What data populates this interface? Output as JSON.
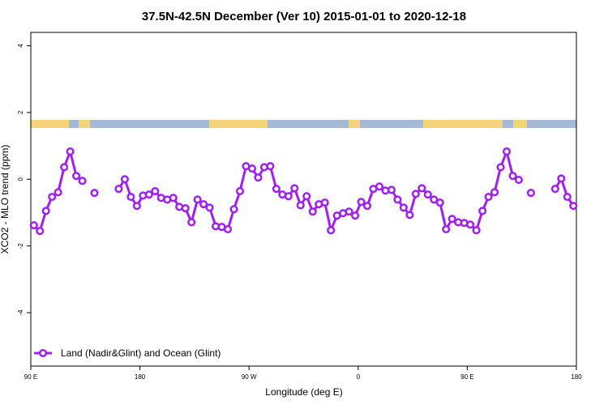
{
  "chart_data": {
    "type": "line",
    "title": "37.5N-42.5N December (Ver 10)   2015-01-01 to 2020-12-18",
    "x_label": "Longitude (deg E)",
    "y_label": "XCO2 - MLO trend (ppm)",
    "xlim": [
      90,
      540
    ],
    "ylim": [
      -5.6,
      4.4
    ],
    "xticks": [
      {
        "value": 90,
        "label": "90 E"
      },
      {
        "value": 180,
        "label": "180"
      },
      {
        "value": 270,
        "label": "90 W"
      },
      {
        "value": 360,
        "label": "0"
      },
      {
        "value": 450,
        "label": "90 E"
      },
      {
        "value": 540,
        "label": "180"
      }
    ],
    "yticks": [
      -4,
      -2,
      0,
      2,
      4
    ],
    "legend": "bottom-left",
    "x": [
      92.5,
      97.5,
      102.5,
      107.5,
      112.5,
      117.5,
      122.5,
      127.5,
      132.5,
      137.5,
      142.5,
      147.5,
      152.5,
      157.5,
      162.5,
      167.5,
      172.5,
      177.5,
      182.5,
      187.5,
      192.5,
      197.5,
      202.5,
      207.5,
      212.5,
      217.5,
      222.5,
      227.5,
      232.5,
      237.5,
      242.5,
      247.5,
      252.5,
      257.5,
      262.5,
      267.5,
      272.5,
      277.5,
      282.5,
      287.5,
      292.5,
      297.5,
      302.5,
      307.5,
      312.5,
      317.5,
      322.5,
      327.5,
      332.5,
      337.5,
      342.5,
      347.5,
      352.5,
      357.5,
      362.5,
      367.5,
      372.5,
      377.5,
      382.5,
      387.5,
      392.5,
      397.5,
      402.5,
      407.5,
      412.5,
      417.5,
      422.5,
      427.5,
      432.5,
      437.5,
      442.5,
      447.5,
      452.5,
      457.5,
      462.5,
      467.5,
      472.5,
      477.5,
      482.5,
      487.5,
      492.5,
      497.5,
      502.5,
      507.5,
      512.5,
      517.5,
      522.5,
      527.5,
      532.5,
      537.5
    ],
    "series": [
      {
        "name": "Land (Nadir&Glint) and Ocean (Glint)",
        "color": "#a020f0",
        "values": [
          -1.38,
          -1.55,
          -0.95,
          -0.53,
          -0.39,
          0.36,
          0.83,
          0.1,
          -0.05,
          null,
          -0.41,
          null,
          null,
          null,
          -0.29,
          0.0,
          -0.53,
          -0.8,
          -0.49,
          -0.46,
          -0.36,
          -0.56,
          -0.61,
          -0.56,
          -0.83,
          -0.87,
          -1.29,
          -0.61,
          -0.75,
          -0.85,
          -1.41,
          -1.43,
          -1.5,
          -0.9,
          -0.36,
          0.39,
          0.32,
          0.05,
          0.36,
          0.39,
          -0.29,
          -0.46,
          -0.51,
          -0.27,
          -0.78,
          -0.51,
          -0.97,
          -0.75,
          -0.7,
          -1.53,
          -1.09,
          -1.02,
          -0.97,
          -1.09,
          -0.68,
          -0.8,
          -0.29,
          -0.22,
          -0.34,
          -0.32,
          -0.61,
          -0.85,
          -1.07,
          -0.44,
          -0.27,
          -0.46,
          -0.61,
          -0.7,
          -1.5,
          -1.19,
          -1.29,
          -1.31,
          -1.36,
          -1.53,
          -0.95,
          -0.53,
          -0.39,
          0.36,
          0.83,
          0.1,
          -0.02,
          null,
          -0.41,
          null,
          null,
          null,
          -0.29,
          0.02,
          -0.53,
          -0.8
        ]
      }
    ]
  }
}
